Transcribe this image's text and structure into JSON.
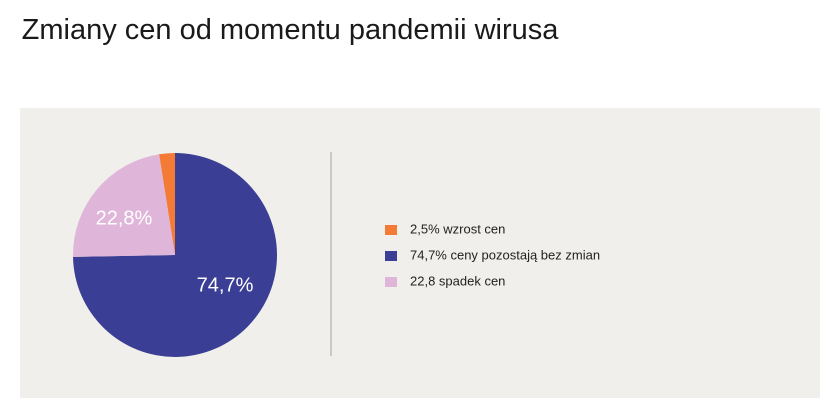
{
  "chart_data": {
    "type": "pie",
    "title": "Zmiany cen od momentu pandemii wirusa",
    "categories": [
      "2,5% wzrost cen",
      "74,7% ceny pozostają bez zmian",
      "22,8 spadek cen"
    ],
    "values": [
      2.5,
      74.7,
      22.8
    ],
    "value_labels": [
      null,
      "74,7%",
      "22,8%"
    ],
    "colors": [
      "#f47b36",
      "#3a3e94",
      "#dfb6d9"
    ]
  }
}
